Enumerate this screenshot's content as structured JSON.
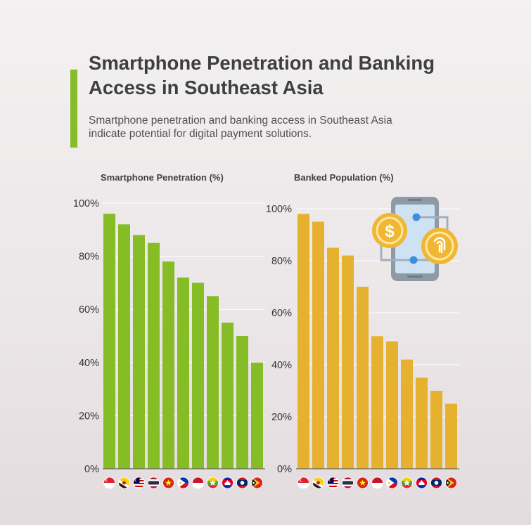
{
  "header": {
    "title": "Smartphone Penetration and Banking Access in Southeast Asia",
    "subtitle": "Smartphone penetration and banking access in Southeast Asia indicate potential for digital payment solutions."
  },
  "colors": {
    "accent": "#86bc25",
    "smartphone": "#86bc25",
    "banked": "#e6b12e",
    "grid": "#ffffff",
    "axis": "#666666"
  },
  "chart_data": [
    {
      "type": "bar",
      "title": "Smartphone Penetration (%)",
      "xlabel": "",
      "ylabel": "",
      "ylim": [
        0,
        100
      ],
      "ytick_values": [
        0,
        20,
        40,
        60,
        80,
        100
      ],
      "ytick_labels": [
        "0%",
        "20%",
        "40%",
        "60%",
        "80%",
        "100%"
      ],
      "grid": true,
      "categories": [
        "singapore-flag-icon",
        "brunei-flag-icon",
        "malaysia-flag-icon",
        "thailand-flag-icon",
        "vietnam-flag-icon",
        "philippines-flag-icon",
        "indonesia-flag-icon",
        "myanmar-flag-icon",
        "cambodia-flag-icon",
        "laos-flag-icon",
        "timor-leste-flag-icon"
      ],
      "values": [
        96,
        92,
        88,
        85,
        78,
        72,
        70,
        65,
        55,
        50,
        40
      ]
    },
    {
      "type": "bar",
      "title": "Banked Population (%)",
      "xlabel": "",
      "ylabel": "",
      "ylim": [
        0,
        100
      ],
      "ytick_values": [
        0,
        20,
        40,
        60,
        80,
        100
      ],
      "ytick_labels": [
        "0%",
        "20%",
        "40%",
        "60%",
        "80%",
        "100%"
      ],
      "grid": true,
      "categories": [
        "singapore-flag-icon",
        "brunei-flag-icon",
        "malaysia-flag-icon",
        "thailand-flag-icon",
        "vietnam-flag-icon",
        "indonesia-flag-icon",
        "philippines-flag-icon",
        "myanmar-flag-icon",
        "cambodia-flag-icon",
        "laos-flag-icon",
        "timor-leste-flag-icon"
      ],
      "values": [
        98,
        95,
        85,
        82,
        70,
        51,
        49,
        42,
        35,
        30,
        25
      ]
    }
  ],
  "illustration": {
    "icon": "mobile-payment-phone-icon"
  }
}
